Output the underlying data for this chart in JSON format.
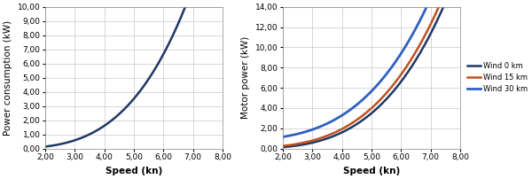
{
  "left": {
    "ylabel": "Power consumption (kW)",
    "xlabel": "Speed (kn)",
    "xlim": [
      2.0,
      8.0
    ],
    "ylim": [
      0.0,
      10.0
    ],
    "xticks": [
      2.0,
      3.0,
      4.0,
      5.0,
      6.0,
      7.0,
      8.0
    ],
    "yticks": [
      0.0,
      1.0,
      2.0,
      3.0,
      4.0,
      5.0,
      6.0,
      7.0,
      8.0,
      9.0,
      10.0
    ],
    "color": "#1f3864",
    "linewidth": 1.8
  },
  "right": {
    "ylabel": "Motor power (kW)",
    "xlabel": "Speed (kn)",
    "xlim": [
      2.0,
      8.0
    ],
    "ylim": [
      0.0,
      14.0
    ],
    "xticks": [
      2.0,
      3.0,
      4.0,
      5.0,
      6.0,
      7.0,
      8.0
    ],
    "yticks": [
      0.0,
      2.0,
      4.0,
      6.0,
      8.0,
      10.0,
      12.0,
      14.0
    ],
    "series": [
      {
        "label": "Wind 0 km",
        "color": "#1f3864",
        "linewidth": 1.8
      },
      {
        "label": "Wind 15 km",
        "color": "#c05020",
        "linewidth": 1.8
      },
      {
        "label": "Wind 30 km",
        "color": "#3060c0",
        "linewidth": 2.0
      }
    ]
  },
  "background_color": "#ffffff",
  "grid_color": "#c8c8c8",
  "tick_label_fontsize": 6.5,
  "axis_label_fontsize": 7.5
}
